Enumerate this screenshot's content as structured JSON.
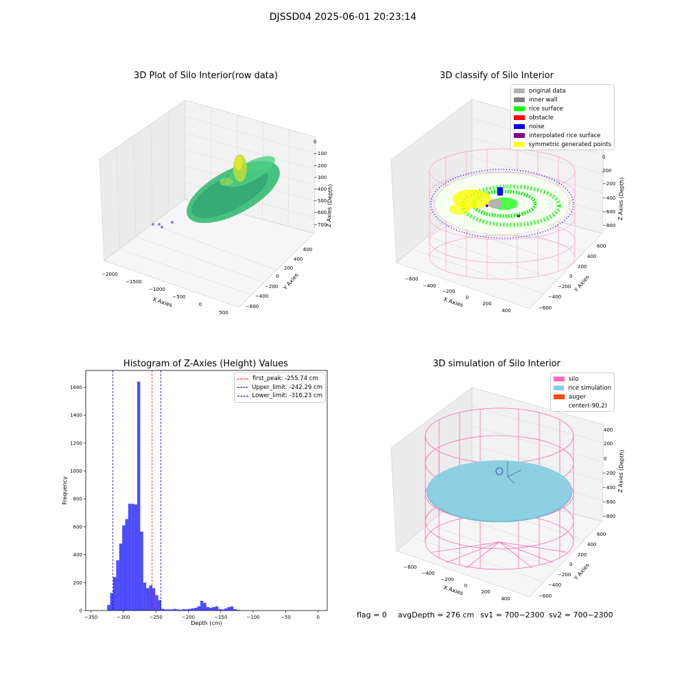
{
  "suptitle": "DJSSD04 2025-06-01 20:23:14",
  "panels": {
    "raw": {
      "title": "3D Plot of Silo Interior(row data)",
      "xlabel": "X Axies",
      "ylabel": "Y Axies",
      "zlabel": "Z Axies (Depth)",
      "xticks": [
        "−2000",
        "−1500",
        "−1000",
        "−500",
        "0",
        "500"
      ],
      "yticks": [
        "600",
        "400",
        "200",
        "0",
        "−200",
        "−400",
        "−600"
      ],
      "zticks": [
        "0",
        "−100",
        "−200",
        "−300",
        "−400",
        "−500",
        "−600",
        "−700"
      ]
    },
    "classify": {
      "title": "3D classify of Silo Interior",
      "xlabel": "X Axies",
      "ylabel": "Y Axies",
      "zlabel": "Z Axies (Depth)",
      "xticks": [
        "−600",
        "−400",
        "−200",
        "0",
        "200",
        "400"
      ],
      "yticks": [
        "600",
        "400",
        "200",
        "0",
        "−200",
        "−400",
        "−600"
      ],
      "zticks": [
        "200",
        "0",
        "−200",
        "−400",
        "−600",
        "−800"
      ],
      "zticks_partial": "0",
      "legend": [
        {
          "label": "original data",
          "color": "#b3b3b3"
        },
        {
          "label": "inner wall",
          "color": "#808080"
        },
        {
          "label": "rice surface",
          "color": "#00ff00"
        },
        {
          "label": "obstacle",
          "color": "#ff0000"
        },
        {
          "label": "noise",
          "color": "#0000ff"
        },
        {
          "label": "interpolated rice surface",
          "color": "#800080"
        },
        {
          "label": "symmetric generated points",
          "color": "#ffff00"
        }
      ]
    },
    "simulation": {
      "title": "3D simulation of Silo Interior",
      "xlabel": "X Axies",
      "ylabel": "Y Axies",
      "zlabel": "Z Axies (Depth)",
      "xticks": [
        "−600",
        "−400",
        "−200",
        "0",
        "200",
        "400"
      ],
      "yticks": [
        "600",
        "400",
        "200",
        "0",
        "−200",
        "−400",
        "−600"
      ],
      "zticks": [
        "400",
        "200",
        "0",
        "−200",
        "−400",
        "−600",
        "−800"
      ],
      "legend": [
        {
          "label": "silo",
          "color": "#ff69b4"
        },
        {
          "label": "rice simulation",
          "color": "#87ceeb"
        },
        {
          "label": "auger",
          "color": "#ff4500"
        },
        {
          "label": "center(-90,2)",
          "color": ""
        }
      ]
    }
  },
  "chart_data": {
    "type": "bar",
    "title": "Histogram of Z-Axies (Height) Values",
    "xlabel": "Depth (cm)",
    "ylabel": "Frequency",
    "xlim": [
      -350,
      0
    ],
    "ylim": [
      0,
      1700
    ],
    "bar_color": "#0000ff",
    "xticks": [
      -350,
      -300,
      -250,
      -200,
      -150,
      -100,
      -50,
      0
    ],
    "xtick_labels": [
      "−350",
      "−300",
      "−250",
      "−200",
      "−150",
      "−100",
      "−50",
      "0"
    ],
    "yticks": [
      0,
      200,
      400,
      600,
      800,
      1000,
      1200,
      1400,
      1600
    ],
    "ytick_labels": [
      "0",
      "200",
      "400",
      "600",
      "800",
      "1000",
      "1200",
      "1400",
      "1600"
    ],
    "bin_edges_start": -325,
    "bin_width": 4.63,
    "values": [
      40,
      125,
      240,
      360,
      480,
      610,
      655,
      765,
      765,
      760,
      1640,
      565,
      200,
      160,
      180,
      160,
      110,
      75,
      12,
      8,
      8,
      8,
      12,
      8,
      6,
      10,
      8,
      12,
      15,
      20,
      30,
      70,
      55,
      25,
      20,
      25,
      30,
      10,
      8,
      15,
      25,
      30,
      10,
      5
    ],
    "vlines": [
      {
        "label": "first_peak: -255.74 cm",
        "x": -255.74,
        "color": "#ff0000"
      },
      {
        "label": "Upper_limit: -242.29 cm",
        "x": -242.29,
        "color": "#0000ff"
      },
      {
        "label": "Lower_limit: -316.23 cm",
        "x": -316.23,
        "color": "#0000ff"
      }
    ],
    "legend_position": "upper right"
  },
  "status": {
    "flag": "flag = 0",
    "avg_depth": "avgDepth = 276 cm",
    "sv1": "sv1 = 700~2300",
    "sv2": "sv2 = 700~2300"
  }
}
